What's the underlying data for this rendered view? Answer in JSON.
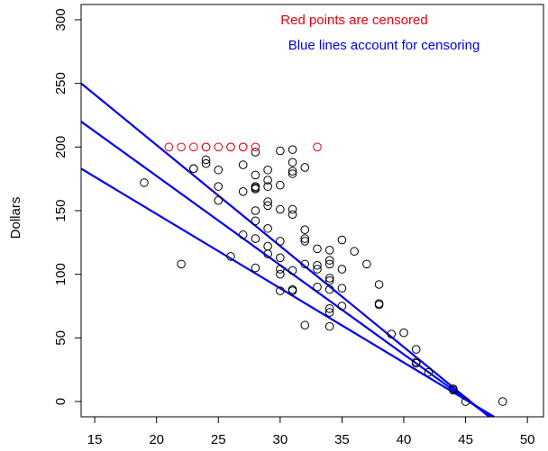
{
  "chart_data": {
    "type": "scatter",
    "title": "",
    "xlabel": "",
    "ylabel": "Dollars",
    "xlim": [
      13.9,
      51.3
    ],
    "ylim": [
      -12,
      312
    ],
    "x_ticks": [
      15,
      20,
      25,
      30,
      35,
      40,
      45,
      50
    ],
    "y_ticks": [
      0,
      50,
      100,
      150,
      200,
      250,
      300
    ],
    "grid": false,
    "annotations": [
      {
        "text": "Red points are censored",
        "color": "#e8000b"
      },
      {
        "text": "Blue lines account for censoring",
        "color": "#0000ee"
      }
    ],
    "series": [
      {
        "color": "#000000",
        "points": [
          [
            19,
            172
          ],
          [
            22,
            108
          ],
          [
            23,
            183
          ],
          [
            23,
            183
          ],
          [
            24,
            190
          ],
          [
            24,
            187
          ],
          [
            25,
            182
          ],
          [
            25,
            169
          ],
          [
            25,
            158
          ],
          [
            26,
            114
          ],
          [
            27,
            186
          ],
          [
            27,
            165
          ],
          [
            27,
            131
          ],
          [
            28,
            196
          ],
          [
            28,
            178
          ],
          [
            28,
            169
          ],
          [
            28,
            168
          ],
          [
            28,
            167
          ],
          [
            28,
            150
          ],
          [
            28,
            142
          ],
          [
            28,
            128
          ],
          [
            28,
            105
          ],
          [
            29,
            182
          ],
          [
            29,
            174
          ],
          [
            29,
            169
          ],
          [
            29,
            157
          ],
          [
            29,
            154
          ],
          [
            29,
            136
          ],
          [
            29,
            122
          ],
          [
            29,
            116
          ],
          [
            30,
            197
          ],
          [
            30,
            170
          ],
          [
            30,
            151
          ],
          [
            30,
            126
          ],
          [
            30,
            113
          ],
          [
            30,
            104
          ],
          [
            30,
            100
          ],
          [
            30,
            87
          ],
          [
            31,
            198
          ],
          [
            31,
            188
          ],
          [
            31,
            181
          ],
          [
            31,
            179
          ],
          [
            31,
            151
          ],
          [
            31,
            147
          ],
          [
            31,
            103
          ],
          [
            31,
            88
          ],
          [
            31,
            87
          ],
          [
            32,
            184
          ],
          [
            32,
            135
          ],
          [
            32,
            128
          ],
          [
            32,
            126
          ],
          [
            32,
            108
          ],
          [
            32,
            60
          ],
          [
            33,
            120
          ],
          [
            33,
            107
          ],
          [
            33,
            104
          ],
          [
            33,
            90
          ],
          [
            34,
            119
          ],
          [
            34,
            111
          ],
          [
            34,
            108
          ],
          [
            34,
            97
          ],
          [
            34,
            95
          ],
          [
            34,
            88
          ],
          [
            34,
            73
          ],
          [
            34,
            70
          ],
          [
            34,
            59
          ],
          [
            35,
            127
          ],
          [
            35,
            104
          ],
          [
            35,
            89
          ],
          [
            35,
            75
          ],
          [
            36,
            118
          ],
          [
            37,
            108
          ],
          [
            38,
            92
          ],
          [
            38,
            77
          ],
          [
            38,
            76
          ],
          [
            39,
            53
          ],
          [
            40,
            54
          ],
          [
            41,
            41
          ],
          [
            41,
            31
          ],
          [
            41,
            30
          ],
          [
            42,
            23
          ],
          [
            44,
            10
          ],
          [
            44,
            9
          ],
          [
            45,
            0
          ],
          [
            48,
            0
          ]
        ]
      },
      {
        "color": "#e8000b",
        "censored": true,
        "points": [
          [
            21,
            200
          ],
          [
            22,
            200
          ],
          [
            23,
            200
          ],
          [
            24,
            200
          ],
          [
            24,
            200
          ],
          [
            25,
            200
          ],
          [
            26,
            200
          ],
          [
            26,
            200
          ],
          [
            27,
            200
          ],
          [
            27,
            200
          ],
          [
            28,
            200
          ],
          [
            33,
            200
          ]
        ]
      },
      {
        "type": "line",
        "color": "#0000ee",
        "lines": [
          {
            "from": [
              13.9,
              250
            ],
            "to": [
              46.9,
              -12
            ]
          },
          {
            "from": [
              13.9,
              220
            ],
            "to": [
              47.0,
              -12
            ]
          },
          {
            "from": [
              13.9,
              183
            ],
            "to": [
              47.3,
              -12
            ]
          }
        ]
      }
    ]
  }
}
